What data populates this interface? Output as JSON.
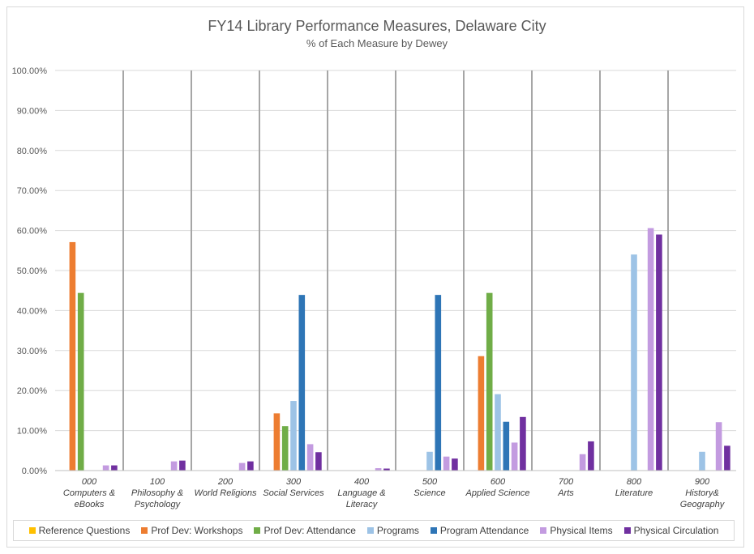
{
  "chart_data": {
    "type": "bar",
    "title": "FY14 Library Performance Measures, Delaware City",
    "subtitle": "% of Each Measure by Dewey",
    "xlabel": "",
    "ylabel": "",
    "ylim": [
      0,
      100
    ],
    "yticks": [
      "0.00%",
      "10.00%",
      "20.00%",
      "30.00%",
      "40.00%",
      "50.00%",
      "60.00%",
      "70.00%",
      "80.00%",
      "90.00%",
      "100.00%"
    ],
    "grid": true,
    "legend_position": "bottom",
    "categories": [
      [
        "000",
        "Computers &",
        "eBooks"
      ],
      [
        "100",
        "Philosophy &",
        "Psychology"
      ],
      [
        "200",
        "World Religions"
      ],
      [
        "300",
        "Social Services"
      ],
      [
        "400",
        "Language &",
        "Literacy"
      ],
      [
        "500",
        "Science"
      ],
      [
        "600",
        "Applied Science"
      ],
      [
        "700",
        "Arts"
      ],
      [
        "800",
        "Literature"
      ],
      [
        "900",
        "History&",
        "Geography"
      ]
    ],
    "series": [
      {
        "name": "Reference Questions",
        "color": "#ffc000",
        "values": [
          0,
          0,
          0,
          0,
          0,
          0,
          0,
          0,
          0,
          0
        ]
      },
      {
        "name": "Prof Dev: Workshops",
        "color": "#ed7d31",
        "values": [
          57.1,
          0,
          0,
          14.3,
          0,
          0,
          28.6,
          0,
          0,
          0
        ]
      },
      {
        "name": "Prof Dev: Attendance",
        "color": "#70ad47",
        "values": [
          44.4,
          0,
          0,
          11.1,
          0,
          0,
          44.4,
          0,
          0,
          0
        ]
      },
      {
        "name": "Programs",
        "color": "#9dc3e6",
        "values": [
          0,
          0,
          0,
          17.4,
          0,
          4.7,
          19.1,
          0,
          54.0,
          4.7
        ]
      },
      {
        "name": "Program Attendance",
        "color": "#2e75b6",
        "values": [
          0,
          0,
          0,
          43.9,
          0,
          43.9,
          12.2,
          0,
          0,
          0
        ]
      },
      {
        "name": "Physical Items",
        "color": "#c39be0",
        "values": [
          1.3,
          2.3,
          1.9,
          6.6,
          0.6,
          3.5,
          7.0,
          4.1,
          60.6,
          12.1
        ]
      },
      {
        "name": "Physical Circulation",
        "color": "#7030a0",
        "values": [
          1.3,
          2.5,
          2.3,
          4.6,
          0.5,
          3.0,
          13.4,
          7.3,
          59.0,
          6.2
        ]
      }
    ]
  }
}
